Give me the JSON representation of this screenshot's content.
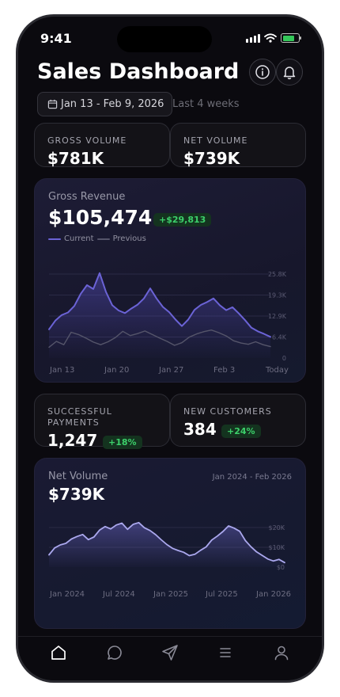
{
  "status": {
    "time": "9:41"
  },
  "header": {
    "title": "Sales Dashboard",
    "info_icon": "info-icon",
    "bell_icon": "bell-icon"
  },
  "filter": {
    "date_range": "Jan 13 - Feb 9, 2026",
    "period": "Last 4 weeks",
    "calendar_icon": "calendar-icon"
  },
  "metrics": {
    "gross_volume": {
      "label": "GROSS VOLUME",
      "value": "$781K"
    },
    "net_volume": {
      "label": "NET VOLUME",
      "value": "$739K"
    },
    "successful_payments": {
      "label": "SUCCESSFUL PAYMENTS",
      "value": "1,247",
      "change": "+18%"
    },
    "new_customers": {
      "label": "NEW CUSTOMERS",
      "value": "384",
      "change": "+24%"
    }
  },
  "gross_revenue": {
    "label": "Gross Revenue",
    "value": "$105,474",
    "change": "+$29,813",
    "legend": [
      "Current",
      "Previous"
    ]
  },
  "net_volume_card": {
    "label": "Net Volume",
    "value": "$739K",
    "range": "Jan 2024 - Feb 2026"
  },
  "colors": {
    "accent": "#6b63d6",
    "previous": "#55556a",
    "positive": "#3ccf6a",
    "background": "#0b0a0f"
  },
  "tabs": [
    "home-icon",
    "chat-icon",
    "send-icon",
    "menu-icon",
    "user-icon"
  ],
  "chart_data": [
    {
      "type": "area",
      "title": "Gross Revenue",
      "x_ticks": [
        "Jan 13",
        "Jan 20",
        "Jan 27",
        "Feb 3",
        "Today"
      ],
      "y_ticks": [
        "25.8K",
        "19.3K",
        "12.9K",
        "6.4K",
        "0"
      ],
      "ylim": [
        0,
        25800
      ],
      "legend_position": "top-left",
      "series": [
        {
          "name": "Current",
          "values": [
            8800,
            11500,
            13200,
            14000,
            16000,
            19700,
            22400,
            21200,
            26100,
            20300,
            16200,
            14600,
            13800,
            15200,
            16400,
            18300,
            21400,
            18300,
            15700,
            14100,
            11800,
            9800,
            11800,
            14800,
            16300,
            17200,
            18300,
            16200,
            14700,
            15600,
            13700,
            11600,
            9300,
            8200,
            7400,
            6500
          ]
        },
        {
          "name": "Previous",
          "values": [
            3300,
            5100,
            4100,
            7900,
            7200,
            6100,
            4900,
            4100,
            5000,
            6300,
            8200,
            6900,
            7500,
            8300,
            7200,
            6100,
            5100,
            3900,
            4700,
            6400,
            7400,
            8100,
            8600,
            7800,
            6800,
            5300,
            4600,
            4200,
            5000,
            4100,
            3500
          ]
        }
      ]
    },
    {
      "type": "area",
      "title": "Net Volume",
      "x_ticks": [
        "Jan 2024",
        "Jul 2024",
        "Jan 2025",
        "Jul 2025",
        "Jan 2026"
      ],
      "y_ticks": [
        "$20K",
        "$10K",
        "$0"
      ],
      "ylim": [
        0,
        20000
      ],
      "series": [
        {
          "name": "Net Volume",
          "values": [
            6200,
            9700,
            11200,
            12000,
            14200,
            15500,
            16500,
            13900,
            15200,
            18700,
            20500,
            19300,
            21300,
            22200,
            19100,
            21600,
            22500,
            19900,
            18500,
            16400,
            13800,
            11400,
            9500,
            8400,
            7500,
            5800,
            6500,
            8500,
            10200,
            13700,
            15700,
            18000,
            20800,
            19700,
            18100,
            13400,
            10300,
            7700,
            5900,
            4100,
            3100,
            3900,
            2300
          ]
        }
      ]
    }
  ]
}
